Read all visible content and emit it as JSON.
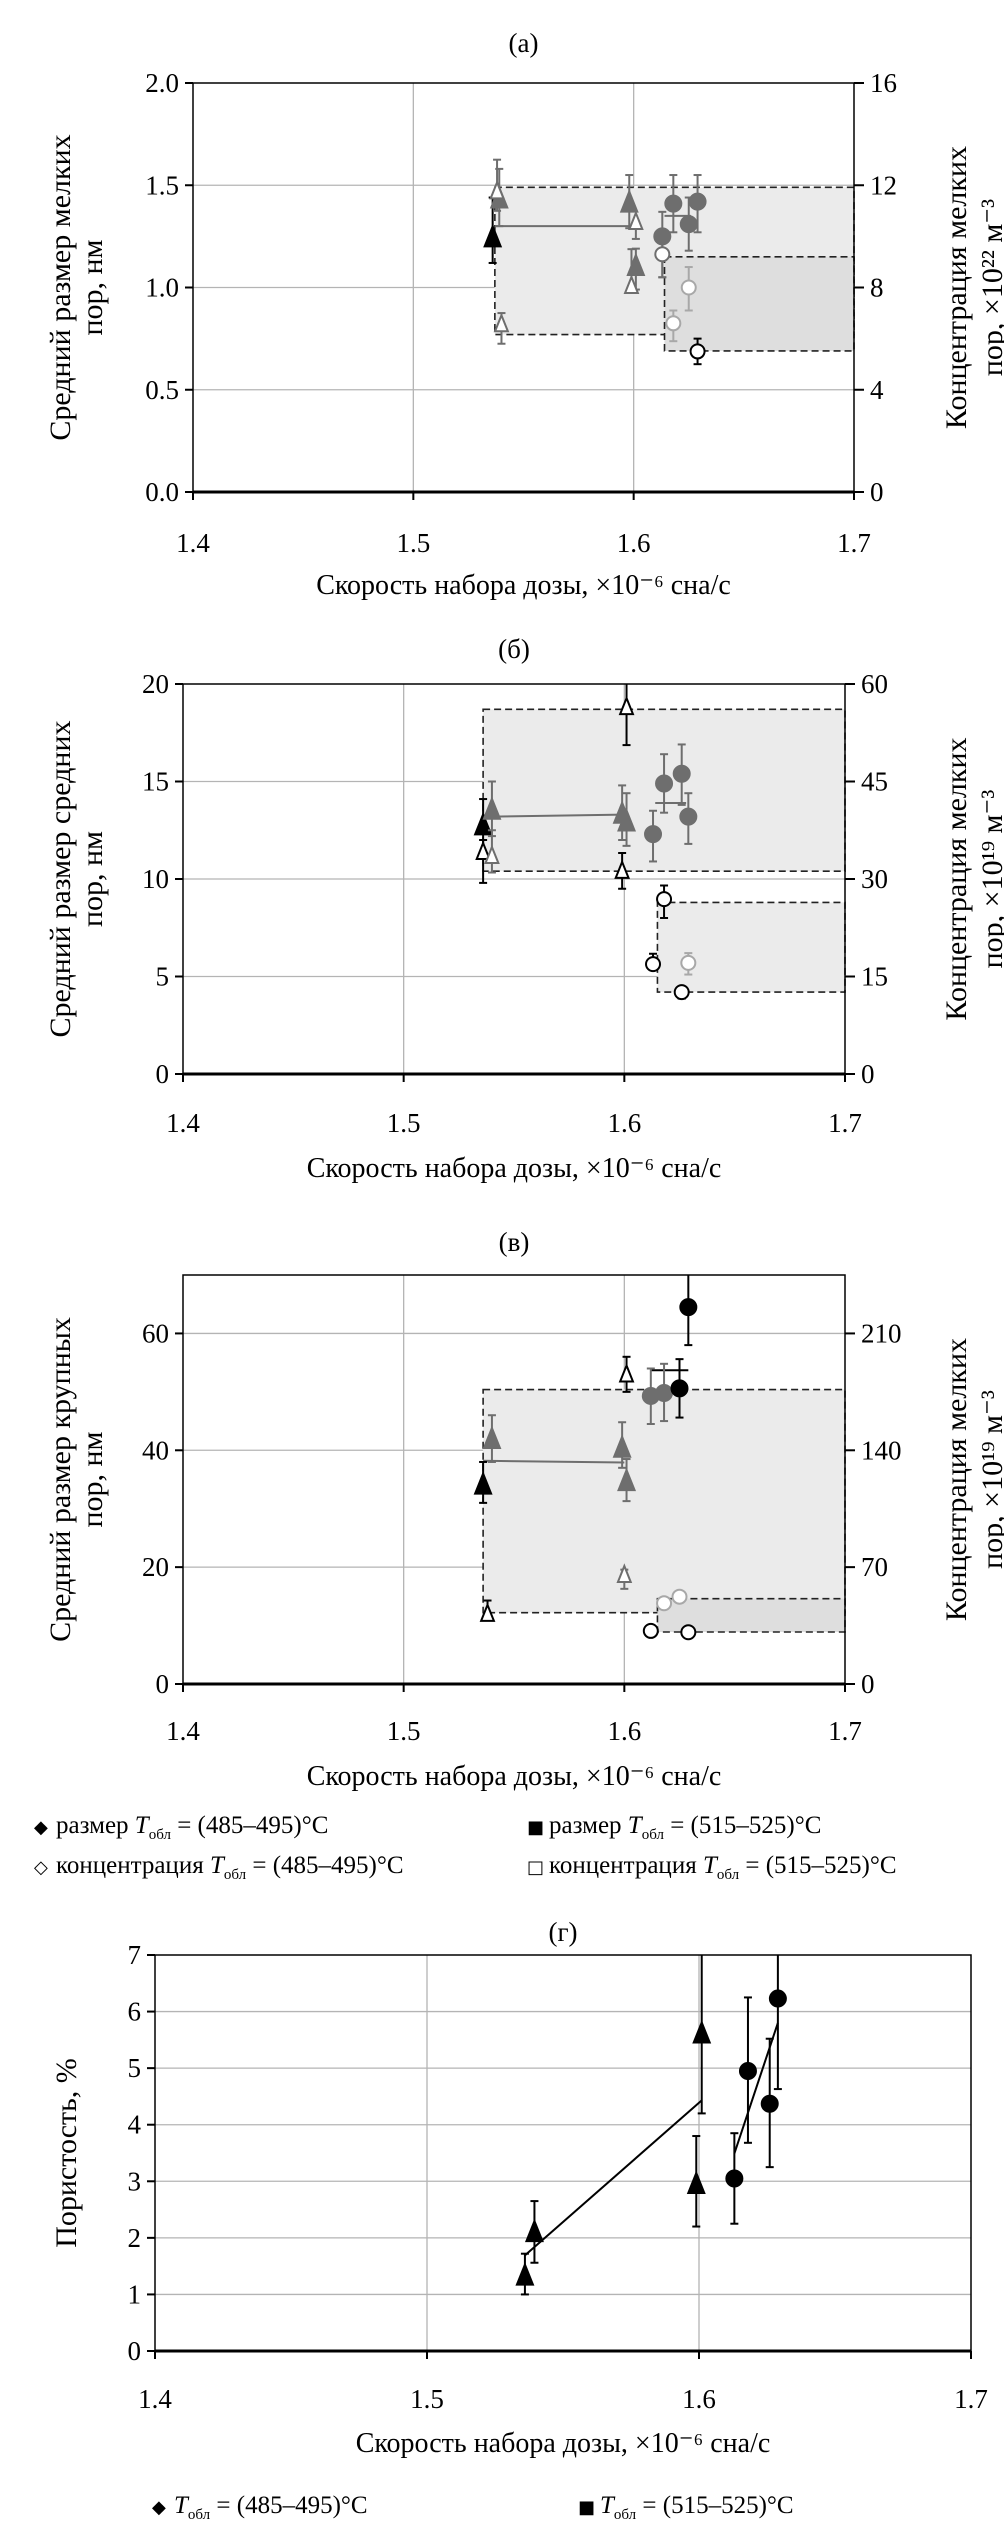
{
  "xlabel": "Скорость набора дозы, ×10⁻⁶ сна/с",
  "legend_size": [
    {
      "symbol": "◆",
      "prefix": "размер ",
      "t": "T",
      "sub": "обл",
      "suffix": " = (485–495)°C"
    },
    {
      "symbol": "■",
      "prefix": "размер ",
      "t": "T",
      "sub": "обл",
      "suffix": " = (515–525)°C"
    },
    {
      "symbol": "◇",
      "prefix": "концентрация ",
      "t": "T",
      "sub": "обл",
      "suffix": " = (485–495)°C"
    },
    {
      "symbol": "□",
      "prefix": "концентрация ",
      "t": "T",
      "sub": "обл",
      "suffix": " = (515–525)°C"
    }
  ],
  "legend_porosity": [
    {
      "symbol": "◆",
      "prefix": "",
      "t": "T",
      "sub": "обл",
      "suffix": " = (485–495)°C"
    },
    {
      "symbol": "■",
      "prefix": "",
      "t": "T",
      "sub": "обл",
      "suffix": " = (515–525)°C"
    }
  ],
  "colors": {
    "dark": "#000000",
    "gray": "#6e6e6e",
    "light": "#a8a8a8",
    "region": "#ebebeb",
    "region_dark": "#dedede",
    "grid": "#b4b4b4"
  },
  "chart_data": [
    {
      "type": "scatter",
      "title": "(а)",
      "xlabel": "Скорость набора дозы, ×10⁻⁶ сна/с",
      "ylabel": [
        "Средний размер мелких",
        "пор, нм"
      ],
      "y2label": [
        "Концентрация мелких",
        "пор, ×10²² м⁻³"
      ],
      "xlim": [
        1.4,
        1.7
      ],
      "xticks": [
        "1.4",
        "1.5",
        "1.6",
        "1.7"
      ],
      "ylim": [
        0,
        2
      ],
      "yticks": [
        "0.0",
        "0.5",
        "1.0",
        "1.5",
        "2.0"
      ],
      "y2lim": [
        0,
        16
      ],
      "y2ticks": [
        "0",
        "4",
        "8",
        "12",
        "16"
      ],
      "grid": true,
      "series": [
        {
          "name": "размер Tобл = (485–495)°C",
          "marker": "triangle",
          "filled": true,
          "axis": "y",
          "color": "#6e6e6e",
          "points": [
            {
              "x": 1.536,
              "y": 1.25,
              "lo": 1.12,
              "hi": 1.44,
              "color": "#000000"
            },
            {
              "x": 1.539,
              "y": 1.44,
              "lo": 1.3,
              "hi": 1.58
            },
            {
              "x": 1.598,
              "y": 1.42,
              "lo": 1.29,
              "hi": 1.55
            },
            {
              "x": 1.601,
              "y": 1.11,
              "lo": 0.99,
              "hi": 1.19
            }
          ]
        },
        {
          "name": "размер Tобл = (515–525)°C",
          "marker": "circle",
          "filled": true,
          "axis": "y",
          "color": "#6e6e6e",
          "points": [
            {
              "x": 1.613,
              "y": 1.25,
              "lo": 1.05,
              "hi": 1.37
            },
            {
              "x": 1.618,
              "y": 1.41,
              "lo": 1.27,
              "hi": 1.55
            },
            {
              "x": 1.625,
              "y": 1.31,
              "lo": 1.18,
              "hi": 1.44
            },
            {
              "x": 1.629,
              "y": 1.42,
              "lo": 1.27,
              "hi": 1.55
            }
          ]
        },
        {
          "name": "концентрация Tобл = (485–495)°C",
          "marker": "triangle",
          "filled": false,
          "axis": "y2",
          "color": "#6e6e6e",
          "points": [
            {
              "x": 1.538,
              "y": 11.8,
              "lo": 11.0,
              "hi": 13.0
            },
            {
              "x": 1.54,
              "y": 6.6,
              "lo": 5.8,
              "hi": 7.0
            },
            {
              "x": 1.601,
              "y": 10.6,
              "lo": 9.9,
              "hi": 10.3
            },
            {
              "x": 1.599,
              "y": 8.1,
              "lo": 7.8,
              "hi": 9.5
            }
          ]
        },
        {
          "name": "концентрация Tобл = (515–525)°C",
          "marker": "circle",
          "filled": false,
          "axis": "y2",
          "color": "#a8a8a8",
          "points": [
            {
              "x": 1.613,
              "y": 9.3,
              "lo": 8.4,
              "hi": 10.1,
              "color": "#6e6e6e"
            },
            {
              "x": 1.618,
              "y": 6.6,
              "lo": 5.9,
              "hi": 7.1
            },
            {
              "x": 1.625,
              "y": 8.0,
              "lo": 7.1,
              "hi": 8.8
            },
            {
              "x": 1.629,
              "y": 5.5,
              "lo": 5.0,
              "hi": 6.0,
              "color": "#000000"
            }
          ]
        }
      ],
      "lines": [
        {
          "points": [
            [
              1.537,
              1.3
            ],
            [
              1.598,
              1.3
            ]
          ],
          "color": "#6e6e6e"
        },
        {
          "points": [
            [
              1.614,
              1.35
            ],
            [
              1.626,
              1.35
            ]
          ],
          "color": "#6e6e6e"
        }
      ],
      "regions": [
        {
          "x": [
            1.537,
            1.7
          ],
          "y": [
            0.77,
            1.49
          ],
          "shade": "region"
        },
        {
          "x": [
            1.614,
            1.7
          ],
          "y": [
            0.69,
            1.15
          ],
          "shade": "region_dark"
        }
      ]
    },
    {
      "type": "scatter",
      "title": "(б)",
      "xlabel": "Скорость набора дозы, ×10⁻⁶ сна/с",
      "ylabel": [
        "Средний размер средних",
        "пор, нм"
      ],
      "y2label": [
        "Концентрация мелких",
        "пор, ×10¹⁹ м⁻³"
      ],
      "xlim": [
        1.4,
        1.7
      ],
      "xticks": [
        "1.4",
        "1.5",
        "1.6",
        "1.7"
      ],
      "ylim": [
        0,
        20
      ],
      "yticks": [
        "0",
        "5",
        "10",
        "15",
        "20"
      ],
      "y2lim": [
        0,
        60
      ],
      "y2ticks": [
        "0",
        "15",
        "30",
        "45",
        "60"
      ],
      "grid": true,
      "series": [
        {
          "name": "размер Tобл = (485–495)°C",
          "marker": "triangle",
          "filled": true,
          "axis": "y",
          "color": "#6e6e6e",
          "points": [
            {
              "x": 1.536,
              "y": 12.8,
              "lo": 11.4,
              "hi": 14.1,
              "color": "#000000"
            },
            {
              "x": 1.54,
              "y": 13.6,
              "lo": 12.2,
              "hi": 15.0
            },
            {
              "x": 1.599,
              "y": 13.4,
              "lo": 12.0,
              "hi": 14.8
            },
            {
              "x": 1.601,
              "y": 13.0,
              "lo": 11.7,
              "hi": 14.4
            }
          ]
        },
        {
          "name": "размер Tобл = (515–525)°C",
          "marker": "circle",
          "filled": true,
          "axis": "y",
          "color": "#6e6e6e",
          "points": [
            {
              "x": 1.613,
              "y": 12.3,
              "lo": 10.9,
              "hi": 13.5
            },
            {
              "x": 1.618,
              "y": 14.9,
              "lo": 13.4,
              "hi": 16.4
            },
            {
              "x": 1.626,
              "y": 15.4,
              "lo": 13.8,
              "hi": 16.9
            },
            {
              "x": 1.629,
              "y": 13.2,
              "lo": 11.8,
              "hi": 14.4
            }
          ]
        },
        {
          "name": "концентрация Tобл = (485–495)°C",
          "marker": "triangle",
          "filled": false,
          "axis": "y2",
          "color": "#6e6e6e",
          "points": [
            {
              "x": 1.536,
              "y": 34.3,
              "lo": 29.4,
              "hi": 36.0,
              "color": "#000000"
            },
            {
              "x": 1.54,
              "y": 33.7,
              "lo": 31.0,
              "hi": 37.5
            },
            {
              "x": 1.601,
              "y": 56.6,
              "lo": 50.6,
              "hi": 60.0,
              "color": "#000000"
            },
            {
              "x": 1.599,
              "y": 31.4,
              "lo": 28.5,
              "hi": 34.0,
              "color": "#000000"
            }
          ]
        },
        {
          "name": "концентрация Tобл = (515–525)°C",
          "marker": "circle",
          "filled": false,
          "axis": "y2",
          "color": "#a8a8a8",
          "points": [
            {
              "x": 1.618,
              "y": 26.9,
              "lo": 24.0,
              "hi": 29.0,
              "color": "#000000"
            },
            {
              "x": 1.613,
              "y": 16.9,
              "lo": 16.0,
              "hi": 18.5,
              "color": "#000000"
            },
            {
              "x": 1.629,
              "y": 17.1,
              "lo": 15.3,
              "hi": 18.6
            },
            {
              "x": 1.626,
              "y": 12.6,
              "lo": 11.6,
              "hi": 13.4,
              "color": "#000000"
            }
          ]
        }
      ],
      "lines": [
        {
          "points": [
            [
              1.54,
              13.2
            ],
            [
              1.599,
              13.3
            ]
          ],
          "color": "#6e6e6e"
        },
        {
          "points": [
            [
              1.614,
              13.9
            ],
            [
              1.628,
              13.9
            ]
          ],
          "color": "#6e6e6e"
        }
      ],
      "regions": [
        {
          "x": [
            1.536,
            1.7
          ],
          "y": [
            10.4,
            18.7
          ],
          "shade": "region"
        },
        {
          "x": [
            1.615,
            1.7
          ],
          "y": [
            4.2,
            8.8
          ],
          "shade": "region"
        }
      ]
    },
    {
      "type": "scatter",
      "title": "(в)",
      "xlabel": "Скорость набора дозы, ×10⁻⁶ сна/с",
      "ylabel": [
        "Средний размер крупных",
        "пор, нм"
      ],
      "y2label": [
        "Концентрация мелких",
        "пор, ×10¹⁹ м⁻³"
      ],
      "xlim": [
        1.4,
        1.7
      ],
      "xticks": [
        "1.4",
        "1.5",
        "1.6",
        "1.7"
      ],
      "ylim": [
        0,
        70
      ],
      "yticks": [
        "0",
        "20",
        "40",
        "60"
      ],
      "ytick_values": [
        0,
        20,
        40,
        60
      ],
      "y2lim": [
        0,
        245
      ],
      "y2ticks": [
        "0",
        "70",
        "140",
        "210"
      ],
      "y2tick_values": [
        0,
        70,
        140,
        210
      ],
      "grid": true,
      "series": [
        {
          "name": "размер Tобл = (485–495)°C",
          "marker": "triangle",
          "filled": true,
          "axis": "y",
          "color": "#6e6e6e",
          "points": [
            {
              "x": 1.536,
              "y": 34.3,
              "lo": 31.0,
              "hi": 38.0,
              "color": "#000000"
            },
            {
              "x": 1.54,
              "y": 42.1,
              "lo": 38.0,
              "hi": 46.0
            },
            {
              "x": 1.599,
              "y": 40.6,
              "lo": 37.0,
              "hi": 44.8
            },
            {
              "x": 1.601,
              "y": 34.9,
              "lo": 31.3,
              "hi": 38.5
            }
          ]
        },
        {
          "name": "размер Tобл = (515–525)°C",
          "marker": "circle",
          "filled": true,
          "axis": "y",
          "color": "#6e6e6e",
          "points": [
            {
              "x": 1.612,
              "y": 49.3,
              "lo": 44.5,
              "hi": 54.0
            },
            {
              "x": 1.618,
              "y": 49.8,
              "lo": 45.0,
              "hi": 54.8
            },
            {
              "x": 1.625,
              "y": 50.6,
              "lo": 45.6,
              "hi": 55.6,
              "color": "#000000"
            },
            {
              "x": 1.629,
              "y": 64.5,
              "lo": 58.0,
              "hi": 70.0,
              "color": "#000000"
            }
          ]
        },
        {
          "name": "концентрация Tобл = (485–495)°C",
          "marker": "triangle",
          "filled": false,
          "axis": "y2",
          "color": "#6e6e6e",
          "points": [
            {
              "x": 1.538,
              "y": 42.6,
              "lo": 40.0,
              "hi": 50.0,
              "color": "#000000"
            },
            {
              "x": 1.6,
              "y": 65.9,
              "lo": 57.0,
              "hi": 68.5
            },
            {
              "x": 1.601,
              "y": 186.0,
              "lo": 175.0,
              "hi": 196.0,
              "color": "#000000"
            }
          ]
        },
        {
          "name": "концентрация Tобл = (515–525)°C",
          "marker": "circle",
          "filled": false,
          "axis": "y2",
          "color": "#a8a8a8",
          "points": [
            {
              "x": 1.618,
              "y": 48.4,
              "lo": 45.5,
              "hi": 51.0
            },
            {
              "x": 1.625,
              "y": 52.3,
              "lo": 49.5,
              "hi": 54.5
            },
            {
              "x": 1.612,
              "y": 31.8,
              "lo": 30.0,
              "hi": 33.5,
              "color": "#000000"
            },
            {
              "x": 1.629,
              "y": 31.0,
              "lo": 29.5,
              "hi": 32.5,
              "color": "#000000"
            }
          ]
        }
      ],
      "lines": [
        {
          "points": [
            [
              1.536,
              38.2
            ],
            [
              1.6,
              37.9
            ]
          ],
          "color": "#6e6e6e"
        },
        {
          "points": [
            [
              1.612,
              53.7
            ],
            [
              1.629,
              53.7
            ]
          ],
          "color": "#000000"
        }
      ],
      "regions": [
        {
          "x": [
            1.536,
            1.7
          ],
          "y": [
            12.2,
            50.4
          ],
          "shade": "region"
        },
        {
          "x": [
            1.615,
            1.7
          ],
          "y": [
            8.9,
            14.6
          ],
          "shade": "region_dark"
        }
      ]
    },
    {
      "type": "scatter",
      "title": "(г)",
      "xlabel": "Скорость набора дозы, ×10⁻⁶ сна/с",
      "ylabel": [
        "Пористость, %"
      ],
      "xlim": [
        1.4,
        1.7
      ],
      "xticks": [
        "1.4",
        "1.5",
        "1.6",
        "1.7"
      ],
      "ylim": [
        0,
        7
      ],
      "yticks": [
        "0",
        "1",
        "2",
        "3",
        "4",
        "5",
        "6",
        "7"
      ],
      "grid": true,
      "series": [
        {
          "name": "Tобл = (485–495)°C",
          "marker": "triangle",
          "filled": true,
          "axis": "y",
          "color": "#000000",
          "points": [
            {
              "x": 1.536,
              "y": 1.35,
              "lo": 1.0,
              "hi": 1.72
            },
            {
              "x": 1.5395,
              "y": 2.12,
              "lo": 1.56,
              "hi": 2.65
            },
            {
              "x": 1.599,
              "y": 2.97,
              "lo": 2.2,
              "hi": 3.8
            },
            {
              "x": 1.601,
              "y": 5.63,
              "lo": 4.2,
              "hi": 7.0
            }
          ]
        },
        {
          "name": "Tобл = (515–525)°C",
          "marker": "circle",
          "filled": true,
          "axis": "y",
          "color": "#000000",
          "points": [
            {
              "x": 1.613,
              "y": 3.05,
              "lo": 2.25,
              "hi": 3.85
            },
            {
              "x": 1.618,
              "y": 4.95,
              "lo": 3.68,
              "hi": 6.25
            },
            {
              "x": 1.626,
              "y": 4.37,
              "lo": 3.25,
              "hi": 5.52
            },
            {
              "x": 1.629,
              "y": 6.23,
              "lo": 4.63,
              "hi": 7.0
            }
          ]
        }
      ],
      "lines": [
        {
          "points": [
            [
              1.536,
              1.69
            ],
            [
              1.601,
              4.43
            ]
          ],
          "color": "#000000"
        },
        {
          "points": [
            [
              1.613,
              3.49
            ],
            [
              1.629,
              5.8
            ]
          ],
          "color": "#000000"
        }
      ],
      "regions": []
    }
  ]
}
